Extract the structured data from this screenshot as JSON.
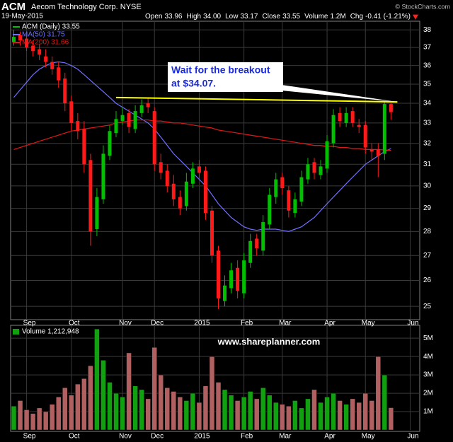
{
  "header": {
    "symbol": "ACM",
    "company": "Aecom Technology Corp. NYSE",
    "date": "19-May-2015",
    "watermark": "© StockCharts.com",
    "quote": [
      {
        "label": "Open",
        "value": "33.96"
      },
      {
        "label": "High",
        "value": "34.00"
      },
      {
        "label": "Low",
        "value": "33.17"
      },
      {
        "label": "Close",
        "value": "33.55"
      },
      {
        "label": "Volume",
        "value": "1.2M"
      },
      {
        "label": "Chg",
        "value": "-0.41 (-1.21%)"
      }
    ]
  },
  "site": "www.shareplanner.com",
  "chart_data": [
    {
      "type": "candlestick",
      "name": "ACM (Daily) 33.55",
      "up_color": "#00c000",
      "down_color": "#ff1a1a",
      "log_scale": true,
      "grid": true,
      "categories": [
        null,
        null,
        "Sep",
        null,
        null,
        null,
        null,
        null,
        null,
        "Oct",
        null,
        null,
        null,
        null,
        null,
        null,
        null,
        "Nov",
        null,
        null,
        null,
        null,
        "Dec",
        null,
        null,
        null,
        null,
        null,
        null,
        "2015",
        null,
        null,
        null,
        null,
        null,
        null,
        "Feb",
        null,
        null,
        null,
        null,
        null,
        "Mar",
        null,
        null,
        null,
        null,
        null,
        null,
        "Apr",
        null,
        null,
        null,
        null,
        null,
        "May",
        null,
        null,
        null,
        null,
        null,
        null,
        "Jun",
        null
      ],
      "open": [
        37.3,
        37.7,
        37.5,
        37.1,
        36.9,
        36.5,
        36.2,
        35.9,
        35.3,
        34.1,
        33.1,
        32.7,
        31.2,
        28.1,
        29.4,
        31.4,
        32.5,
        33.1,
        33.5,
        32.7,
        33.5,
        34.0,
        33.6,
        31.1,
        30.7,
        30.1,
        29.5,
        29.1,
        30.1,
        30.9,
        30.7,
        28.9,
        27.2,
        25.2,
        25.7,
        26.5,
        25.5,
        26.7,
        27.7,
        27.2,
        28.3,
        29.5,
        30.4,
        29.8,
        28.8,
        29.3,
        30.3,
        31.1,
        30.5,
        30.8,
        32.0,
        33.5,
        33.0,
        33.6,
        32.9,
        32.9,
        31.7,
        31.7,
        31.5,
        33.96,
        null,
        null,
        null,
        null
      ],
      "high": [
        38.0,
        37.9,
        37.8,
        37.4,
        37.2,
        36.9,
        36.5,
        36.2,
        35.6,
        34.4,
        33.5,
        33.1,
        31.5,
        29.9,
        31.9,
        32.9,
        33.6,
        33.8,
        33.7,
        33.9,
        34.2,
        34.3,
        33.8,
        31.5,
        31.0,
        30.5,
        29.8,
        30.6,
        31.1,
        31.2,
        30.9,
        29.1,
        27.4,
        26.2,
        26.7,
        26.8,
        27.1,
        27.9,
        27.9,
        28.7,
        29.9,
        30.6,
        30.6,
        30.0,
        29.7,
        30.7,
        31.3,
        31.3,
        31.2,
        32.4,
        33.7,
        33.8,
        33.8,
        33.8,
        33.2,
        33.1,
        32.0,
        32.0,
        34.1,
        34.0,
        null,
        null,
        null,
        null
      ],
      "low": [
        37.1,
        37.1,
        36.8,
        36.5,
        36.3,
        35.9,
        35.5,
        34.8,
        33.6,
        32.6,
        32.2,
        30.6,
        27.4,
        27.8,
        29.2,
        31.2,
        32.3,
        32.9,
        32.5,
        32.5,
        33.3,
        33.5,
        30.7,
        30.3,
        29.7,
        29.1,
        28.7,
        28.9,
        29.9,
        30.3,
        28.5,
        26.7,
        24.9,
        25.0,
        25.5,
        25.3,
        25.3,
        26.5,
        27.0,
        27.0,
        28.1,
        29.2,
        29.6,
        28.6,
        28.6,
        29.1,
        30.1,
        30.3,
        30.3,
        30.6,
        31.8,
        32.8,
        32.8,
        32.8,
        32.5,
        31.5,
        31.2,
        30.4,
        31.2,
        33.17,
        null,
        null,
        null,
        null
      ],
      "close": [
        37.6,
        37.4,
        37.0,
        36.8,
        36.6,
        36.2,
        35.8,
        35.2,
        34.0,
        33.0,
        32.6,
        31.0,
        28.0,
        29.5,
        31.5,
        32.6,
        33.2,
        33.4,
        32.8,
        33.6,
        33.9,
        33.8,
        31.0,
        30.6,
        30.0,
        29.4,
        29.0,
        30.2,
        30.8,
        30.6,
        28.8,
        27.0,
        25.3,
        25.8,
        26.4,
        25.6,
        26.8,
        27.6,
        27.3,
        28.4,
        29.6,
        30.3,
        29.9,
        28.9,
        29.4,
        30.4,
        31.0,
        30.6,
        30.9,
        32.1,
        33.4,
        33.1,
        33.5,
        33.0,
        32.8,
        31.8,
        31.6,
        31.4,
        33.96,
        33.55,
        null,
        null,
        null,
        null
      ],
      "series": [
        {
          "name": "MA(50) 31.75",
          "color": "#6f6fff",
          "values": [
            34.3,
            34.7,
            35.1,
            35.5,
            35.8,
            36.0,
            36.15,
            36.2,
            36.15,
            36.0,
            35.8,
            35.5,
            35.2,
            34.9,
            34.6,
            34.3,
            34.0,
            33.8,
            33.6,
            33.4,
            33.2,
            33.0,
            32.7,
            32.3,
            31.9,
            31.5,
            31.2,
            30.9,
            30.6,
            30.3,
            30.0,
            29.6,
            29.2,
            28.9,
            28.6,
            28.4,
            28.2,
            28.1,
            28.05,
            28.1,
            28.1,
            28.1,
            28.05,
            28.0,
            28.1,
            28.2,
            28.4,
            28.6,
            28.9,
            29.2,
            29.5,
            29.8,
            30.1,
            30.4,
            30.7,
            31.0,
            31.2,
            31.4,
            31.6,
            31.75,
            null,
            null,
            null,
            null
          ]
        },
        {
          "name": "MA(200) 31.66",
          "color": "#e01818",
          "values": [
            31.7,
            31.8,
            31.9,
            32.0,
            32.1,
            32.2,
            32.3,
            32.4,
            32.5,
            32.6,
            32.65,
            32.7,
            32.75,
            32.8,
            32.85,
            32.9,
            33.0,
            33.05,
            33.1,
            33.15,
            33.15,
            33.15,
            33.1,
            33.1,
            33.05,
            33.0,
            33.0,
            32.95,
            32.9,
            32.85,
            32.8,
            32.75,
            32.65,
            32.6,
            32.55,
            32.5,
            32.45,
            32.4,
            32.35,
            32.3,
            32.25,
            32.2,
            32.15,
            32.1,
            32.05,
            32.0,
            31.95,
            31.9,
            31.9,
            31.85,
            31.85,
            31.8,
            31.8,
            31.75,
            31.75,
            31.7,
            31.7,
            31.7,
            31.68,
            31.66,
            null,
            null,
            null,
            null
          ]
        }
      ],
      "ylim": [
        24.5,
        38.5
      ],
      "yticks": [
        25,
        26,
        27,
        28,
        29,
        30,
        31,
        32,
        33,
        34,
        35,
        36,
        37,
        38
      ],
      "trendline": {
        "color": "#ffff00",
        "x": [
          16,
          60
        ],
        "values": [
          34.3,
          34.07
        ]
      },
      "annotation": [
        "Wait for the breakout",
        "at $34.07."
      ]
    },
    {
      "type": "bar",
      "title": "Volume 1,212,948",
      "up_color": "#10a010",
      "down_color": "#b06060",
      "categories": [
        null,
        null,
        "Sep",
        null,
        null,
        null,
        null,
        null,
        null,
        "Oct",
        null,
        null,
        null,
        null,
        null,
        null,
        null,
        "Nov",
        null,
        null,
        null,
        null,
        "Dec",
        null,
        null,
        null,
        null,
        null,
        null,
        "2015",
        null,
        null,
        null,
        null,
        null,
        null,
        "Feb",
        null,
        null,
        null,
        null,
        null,
        "Mar",
        null,
        null,
        null,
        null,
        null,
        null,
        "Apr",
        null,
        null,
        null,
        null,
        null,
        "May",
        null,
        null,
        null,
        null,
        null,
        null,
        "Jun",
        null
      ],
      "values": [
        1300000,
        1600000,
        1100000,
        900000,
        1200000,
        1000000,
        1400000,
        1800000,
        2300000,
        1900000,
        2500000,
        2800000,
        3500000,
        5500000,
        3800000,
        2600000,
        2000000,
        1800000,
        4200000,
        2400000,
        2200000,
        1700000,
        4500000,
        3000000,
        2300000,
        2100000,
        1800000,
        1600000,
        2000000,
        1500000,
        2400000,
        4000000,
        2600000,
        2200000,
        1900000,
        1600000,
        1800000,
        2100000,
        1700000,
        2300000,
        1900000,
        1500000,
        1400000,
        1300000,
        1600000,
        1200000,
        1700000,
        2200000,
        1500000,
        1800000,
        2000000,
        1600000,
        1400000,
        1700000,
        1500000,
        2000000,
        1600000,
        4000000,
        3000000,
        1212948,
        null,
        null,
        null,
        null
      ],
      "ylim": [
        0,
        5700000
      ],
      "yticks": [
        {
          "value": 1000000,
          "label": "1M"
        },
        {
          "value": 2000000,
          "label": "2M"
        },
        {
          "value": 3000000,
          "label": "3M"
        },
        {
          "value": 4000000,
          "label": "4M"
        },
        {
          "value": 5000000,
          "label": "5M"
        }
      ]
    }
  ]
}
